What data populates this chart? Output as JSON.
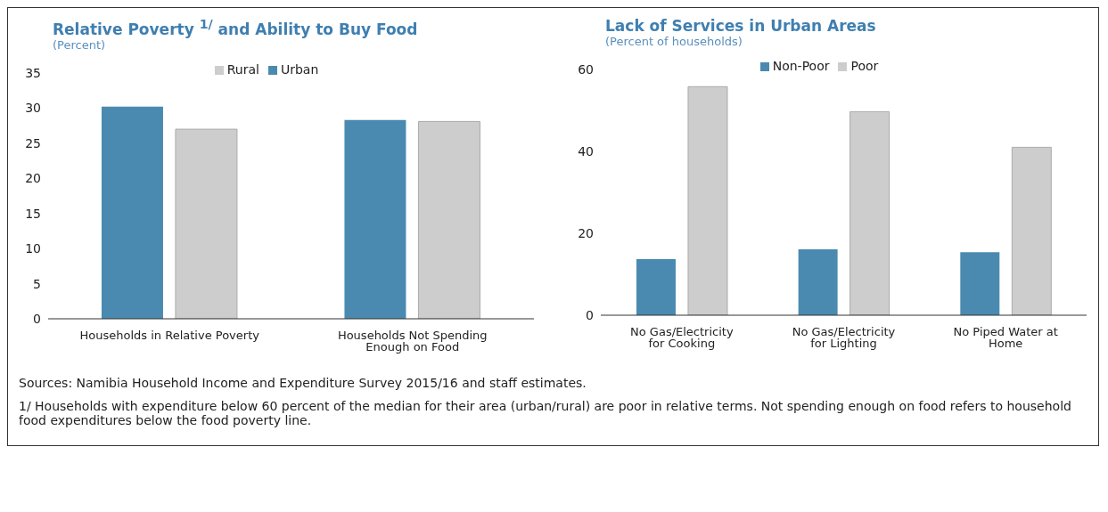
{
  "chart_data": [
    {
      "type": "bar",
      "title": "Relative Poverty $^{1/}$ and Ability to Buy Food",
      "subtitle": "(Percent)",
      "categories": [
        "Households in Relative Poverty",
        "Households Not Spending Enough on Food"
      ],
      "series": [
        {
          "name": "Urban",
          "color": "#4a8ab0",
          "values": [
            30.2,
            28.3
          ]
        },
        {
          "name": "Rural",
          "color": "#cdcdcd",
          "values": [
            27.0,
            28.1
          ]
        }
      ],
      "ylim": [
        0,
        35
      ],
      "yticks": [
        0,
        5,
        10,
        15,
        20,
        25,
        30,
        35
      ],
      "grid": false,
      "legend": "top",
      "annotations": [
        "Sources: Namibia Household Income and Expenditure Survey 2015/16 and staff estimates.",
        "1/ Households with expenditure below 60 percent of the median for their area (urban/rural) are poor in relative terms. Not spending enough on food refers to household food expenditures below the food poverty line."
      ]
    },
    {
      "type": "bar",
      "title": "Lack of Services in Urban Areas",
      "subtitle": "(Percent of households)",
      "categories": [
        "No Gas/Electricity for Cooking",
        "No Gas/Electricity for Lighting",
        "No Piped Water at Home"
      ],
      "series": [
        {
          "name": "Non-Poor",
          "color": "#4a8ab0",
          "values": [
            13.7,
            16.1,
            15.4
          ]
        },
        {
          "name": "Poor",
          "color": "#cdcdcd",
          "values": [
            55.8,
            49.7,
            41.0
          ]
        }
      ],
      "ylim": [
        0,
        60
      ],
      "yticks": [
        0,
        20,
        40,
        60
      ],
      "grid": false,
      "legend": "top"
    }
  ]
}
